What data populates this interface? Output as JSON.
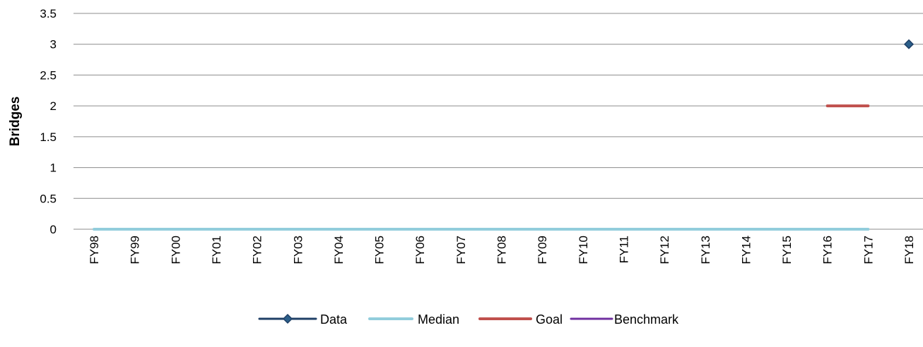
{
  "chart_data": {
    "type": "line",
    "title": "",
    "xlabel": "",
    "ylabel": "Bridges",
    "ylim": [
      0,
      3.5
    ],
    "ytick_step": 0.5,
    "ytick_labels": [
      "0",
      "0.5",
      "1",
      "1.5",
      "2",
      "2.5",
      "3",
      "3.5"
    ],
    "grid": true,
    "legend_position": "bottom",
    "categories": [
      "FY98",
      "FY99",
      "FY00",
      "FY01",
      "FY02",
      "FY03",
      "FY04",
      "FY05",
      "FY06",
      "FY07",
      "FY08",
      "FY09",
      "FY10",
      "FY11",
      "FY12",
      "FY13",
      "FY14",
      "FY15",
      "FY16",
      "FY17",
      "FY18"
    ],
    "series": [
      {
        "name": "Data",
        "color": "#1F3F66",
        "marker": "diamond",
        "values": [
          null,
          null,
          null,
          null,
          null,
          null,
          null,
          null,
          null,
          null,
          null,
          null,
          null,
          null,
          null,
          null,
          null,
          null,
          null,
          null,
          3
        ]
      },
      {
        "name": "Median",
        "color": "#92CDDC",
        "marker": "none",
        "values": [
          0,
          0,
          0,
          0,
          0,
          0,
          0,
          0,
          0,
          0,
          0,
          0,
          0,
          0,
          0,
          0,
          0,
          0,
          0,
          0,
          null
        ]
      },
      {
        "name": "Goal",
        "color": "#C0504D",
        "marker": "none",
        "values": [
          null,
          null,
          null,
          null,
          null,
          null,
          null,
          null,
          null,
          null,
          null,
          null,
          null,
          null,
          null,
          null,
          null,
          null,
          2,
          2,
          null
        ]
      },
      {
        "name": "Benchmark",
        "color": "#7030A0",
        "marker": "none",
        "values": [
          null,
          null,
          null,
          null,
          null,
          null,
          null,
          null,
          null,
          null,
          null,
          null,
          null,
          null,
          null,
          null,
          null,
          null,
          null,
          null,
          null
        ]
      }
    ]
  }
}
